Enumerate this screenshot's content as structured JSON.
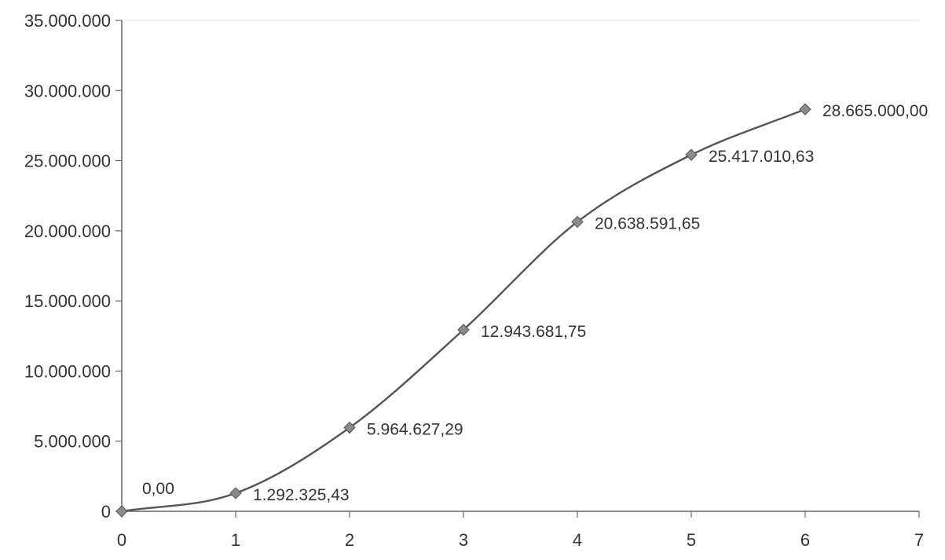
{
  "chart_data": {
    "type": "line",
    "title": "",
    "xlabel": "",
    "ylabel": "",
    "xlim": [
      0,
      7
    ],
    "ylim": [
      0,
      35000000
    ],
    "x_ticks": [
      "0",
      "1",
      "2",
      "3",
      "4",
      "5",
      "6",
      "7"
    ],
    "y_ticks": [
      "0",
      "5.000.000",
      "10.000.000",
      "15.000.000",
      "20.000.000",
      "25.000.000",
      "30.000.000",
      "35.000.000"
    ],
    "y_tick_values": [
      0,
      5000000,
      10000000,
      15000000,
      20000000,
      25000000,
      30000000,
      35000000
    ],
    "x_tick_values": [
      0,
      1,
      2,
      3,
      4,
      5,
      6,
      7
    ],
    "grid": false,
    "legend": "none",
    "marker": "diamond",
    "smooth": true,
    "series": [
      {
        "x": [
          0,
          1,
          2,
          3,
          4,
          5,
          6
        ],
        "values": [
          0.0,
          1292325.43,
          5964627.29,
          12943681.75,
          20638591.65,
          25417010.63,
          28665000.0
        ],
        "labels": [
          "0,00",
          "1.292.325,43",
          "5.964.627,29",
          "12.943.681,75",
          "20.638.591,65",
          "25.417.010,63",
          "28.665.000,00"
        ]
      }
    ],
    "colors": {
      "line": "#555555",
      "marker": "#8a8a8a",
      "axis": "#666666",
      "text": "#333333"
    }
  }
}
